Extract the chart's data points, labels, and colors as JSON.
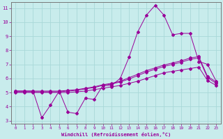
{
  "xlabel": "Windchill (Refroidissement éolien,°C)",
  "background_color": "#c8ecec",
  "grid_color": "#a8d8d8",
  "line_color": "#990099",
  "xlim": [
    -0.5,
    23.5
  ],
  "ylim": [
    2.8,
    11.4
  ],
  "xticks": [
    0,
    1,
    2,
    3,
    4,
    5,
    6,
    7,
    8,
    9,
    10,
    11,
    12,
    13,
    14,
    15,
    16,
    17,
    18,
    19,
    20,
    21,
    22,
    23
  ],
  "yticks": [
    3,
    4,
    5,
    6,
    7,
    8,
    9,
    10,
    11
  ],
  "series": [
    {
      "x": [
        0,
        1,
        2,
        3,
        4,
        5,
        6,
        7,
        8,
        9,
        10,
        11,
        12,
        13,
        14,
        15,
        16,
        17,
        18,
        19,
        20,
        21,
        22,
        23
      ],
      "y": [
        5.1,
        5.1,
        5.1,
        3.2,
        4.1,
        5.1,
        3.6,
        3.5,
        4.6,
        4.5,
        5.5,
        5.5,
        6.0,
        7.5,
        9.3,
        10.5,
        11.2,
        10.5,
        9.1,
        9.2,
        9.2,
        7.2,
        7.0,
        5.8
      ]
    },
    {
      "x": [
        0,
        1,
        2,
        3,
        4,
        5,
        6,
        7,
        8,
        9,
        10,
        11,
        12,
        13,
        14,
        15,
        16,
        17,
        18,
        19,
        20,
        21,
        22,
        23
      ],
      "y": [
        5.1,
        5.1,
        5.1,
        5.1,
        5.1,
        5.1,
        5.15,
        5.2,
        5.3,
        5.4,
        5.55,
        5.65,
        5.8,
        6.05,
        6.3,
        6.55,
        6.75,
        6.95,
        7.1,
        7.25,
        7.45,
        7.55,
        6.15,
        5.75
      ]
    },
    {
      "x": [
        0,
        1,
        2,
        3,
        4,
        5,
        6,
        7,
        8,
        9,
        10,
        11,
        12,
        13,
        14,
        15,
        16,
        17,
        18,
        19,
        20,
        21,
        22,
        23
      ],
      "y": [
        5.05,
        5.05,
        5.05,
        5.05,
        5.05,
        5.05,
        5.1,
        5.15,
        5.25,
        5.35,
        5.5,
        5.6,
        5.75,
        5.95,
        6.2,
        6.45,
        6.65,
        6.85,
        7.0,
        7.15,
        7.35,
        7.45,
        6.05,
        5.65
      ]
    },
    {
      "x": [
        0,
        1,
        2,
        3,
        4,
        5,
        6,
        7,
        8,
        9,
        10,
        11,
        12,
        13,
        14,
        15,
        16,
        17,
        18,
        19,
        20,
        21,
        22,
        23
      ],
      "y": [
        5.0,
        5.0,
        5.0,
        5.0,
        5.0,
        5.0,
        5.0,
        5.05,
        5.1,
        5.2,
        5.3,
        5.4,
        5.5,
        5.65,
        5.8,
        6.0,
        6.2,
        6.4,
        6.5,
        6.6,
        6.7,
        6.8,
        5.85,
        5.5
      ]
    }
  ]
}
